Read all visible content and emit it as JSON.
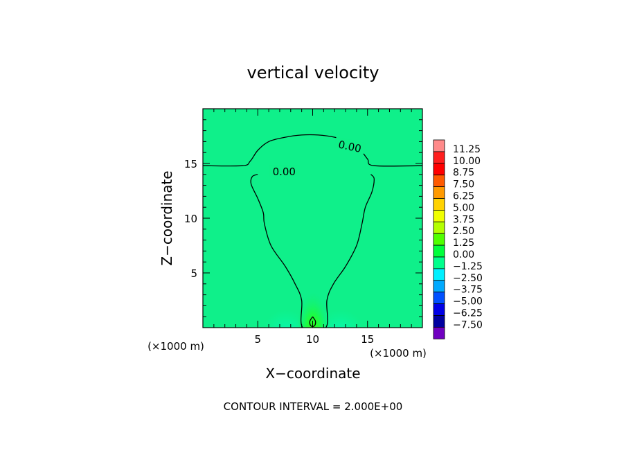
{
  "chart_data": {
    "type": "contour",
    "title": "vertical velocity",
    "xlabel": "X−coordinate",
    "ylabel": "Z−coordinate",
    "x_unit_label": "(×1000 m)",
    "z_unit_label": "(×1000 m)",
    "xlim": [
      0,
      20
    ],
    "ylim": [
      0,
      20
    ],
    "x_ticks": [
      5,
      10,
      15
    ],
    "y_ticks": [
      5,
      10,
      15
    ],
    "footer": "CONTOUR INTERVAL = 2.000E+00",
    "contour_labels": [
      {
        "text": "0.00",
        "x": 13.4,
        "z": 16.6,
        "angle": 12
      },
      {
        "text": "0.00",
        "x": 7.4,
        "z": 14.3,
        "angle": 0
      }
    ],
    "contour_lines": [
      {
        "level": 0.0,
        "points": [
          [
            0,
            14.8
          ],
          [
            3.6,
            14.8
          ],
          [
            4.3,
            15.2
          ],
          [
            5.0,
            16.2
          ],
          [
            6.0,
            17.0
          ],
          [
            7.5,
            17.4
          ],
          [
            9.0,
            17.6
          ],
          [
            10.5,
            17.6
          ],
          [
            12.0,
            17.4
          ],
          [
            13.3,
            17.0
          ],
          [
            14.3,
            16.3
          ],
          [
            15.0,
            15.4
          ],
          [
            15.6,
            14.8
          ],
          [
            20,
            14.8
          ]
        ]
      },
      {
        "level": 0.0,
        "points": [
          [
            5.0,
            14.0
          ],
          [
            4.5,
            13.8
          ],
          [
            4.4,
            13.1
          ],
          [
            5.0,
            11.8
          ],
          [
            5.5,
            10.5
          ],
          [
            5.6,
            9.5
          ],
          [
            6.2,
            7.5
          ],
          [
            7.5,
            5.6
          ],
          [
            8.4,
            4.0
          ],
          [
            9.0,
            2.5
          ],
          [
            9.1,
            0
          ],
          [
            11.2,
            0
          ],
          [
            11.3,
            2.5
          ],
          [
            11.9,
            4.0
          ],
          [
            13.0,
            5.6
          ],
          [
            14.0,
            7.5
          ],
          [
            14.5,
            9.5
          ],
          [
            14.8,
            11.0
          ],
          [
            15.4,
            12.4
          ],
          [
            15.6,
            13.6
          ],
          [
            15.3,
            14.0
          ]
        ]
      },
      {
        "level": 2.0,
        "points": [
          [
            10.0,
            1.0
          ],
          [
            9.75,
            0.6
          ],
          [
            9.78,
            0.25
          ],
          [
            10.0,
            0.1
          ],
          [
            10.22,
            0.25
          ],
          [
            10.25,
            0.6
          ],
          [
            10.0,
            1.0
          ]
        ]
      }
    ],
    "colorbar": {
      "levels": [
        "11.25",
        "10.00",
        "8.75",
        "7.50",
        "6.25",
        "5.00",
        "3.75",
        "2.50",
        "1.25",
        "0.00",
        "−1.25",
        "−2.50",
        "−3.75",
        "−5.00",
        "−6.25",
        "−7.50"
      ],
      "colors": [
        "#ff8a8a",
        "#ff1e1e",
        "#ff0000",
        "#ff5a00",
        "#ff9a00",
        "#ffd200",
        "#f0ff00",
        "#b4ff00",
        "#50ff00",
        "#00ff3c",
        "#00ff8c",
        "#00f0ff",
        "#00aaff",
        "#0050ff",
        "#0000e6",
        "#0000a0",
        "#7000c0"
      ]
    },
    "background_color": "#0ff088"
  }
}
